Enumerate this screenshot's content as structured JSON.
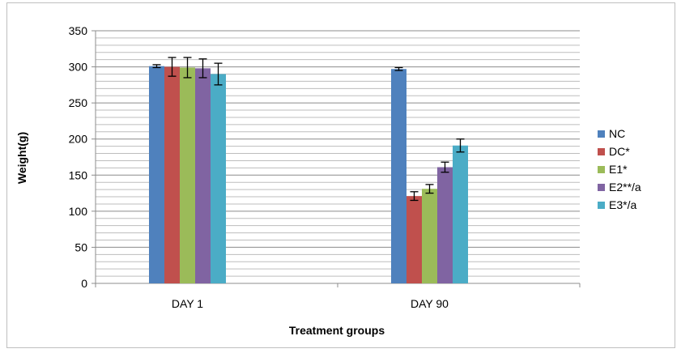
{
  "chart_data": {
    "type": "bar",
    "categories": [
      "DAY 1",
      "DAY 90"
    ],
    "series": [
      {
        "name": "NC",
        "color": "#4f81bd",
        "values": [
          301,
          297
        ],
        "errors": [
          2,
          2
        ]
      },
      {
        "name": "DC*",
        "color": "#c0504d",
        "values": [
          300,
          121
        ],
        "errors": [
          13,
          6
        ]
      },
      {
        "name": "E1*",
        "color": "#9bbb59",
        "values": [
          299,
          131
        ],
        "errors": [
          14,
          6
        ]
      },
      {
        "name": "E2**/a",
        "color": "#8064a2",
        "values": [
          298,
          161
        ],
        "errors": [
          13,
          7
        ]
      },
      {
        "name": "E3*/a",
        "color": "#4bacc6",
        "values": [
          290,
          191
        ],
        "errors": [
          15,
          9
        ]
      }
    ],
    "title": "",
    "xlabel": "Treatment groups",
    "ylabel": "Weight(g)",
    "ylim": [
      0,
      350
    ],
    "ytick_labels": [
      "0",
      "50",
      "100",
      "150",
      "200",
      "250",
      "300",
      "350"
    ],
    "grid": true,
    "legend_position": "right"
  }
}
